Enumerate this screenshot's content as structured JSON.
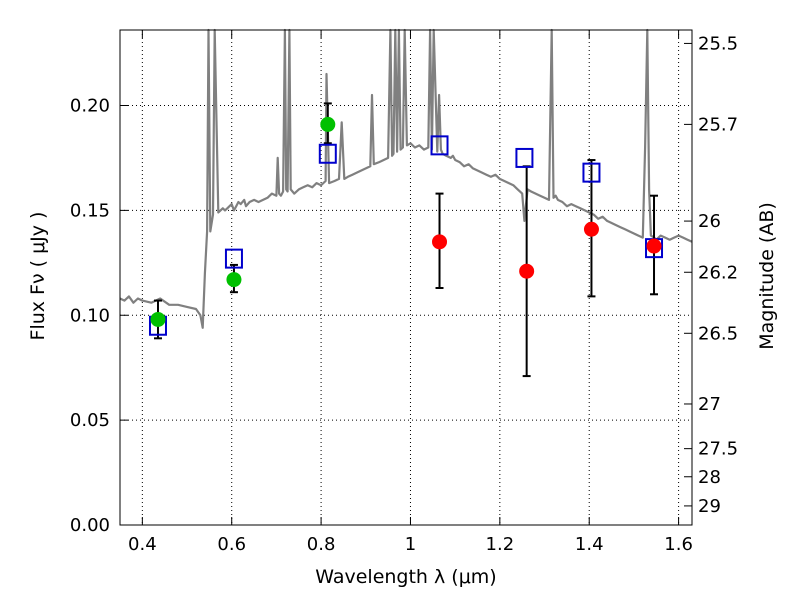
{
  "chart_data": {
    "type": "scatter",
    "xlabel": "Wavelength  λ (μm)",
    "ylabel": "Flux  Fν  ( μJy )",
    "y2label": "Magnitude (AB)",
    "xlim": [
      0.35,
      1.63
    ],
    "ylim": [
      0.0,
      0.236
    ],
    "grid": true,
    "x_ticks": [
      0.4,
      0.6,
      0.8,
      1.0,
      1.2,
      1.4,
      1.6
    ],
    "x_tick_labels": [
      "0.4",
      "0.6",
      "0.8",
      "1",
      "1.2",
      "1.4",
      "1.6"
    ],
    "y_ticks": [
      0.0,
      0.05,
      0.1,
      0.15,
      0.2
    ],
    "y_tick_labels": [
      "0.00",
      "0.05",
      "0.10",
      "0.15",
      "0.20"
    ],
    "y2_ticks": [
      {
        "label": "25.5",
        "flux": 0.2296
      },
      {
        "label": "25.7",
        "flux": 0.191
      },
      {
        "label": "26",
        "flux": 0.1449
      },
      {
        "label": "26.2",
        "flux": 0.1205
      },
      {
        "label": "26.5",
        "flux": 0.0914
      },
      {
        "label": "27",
        "flux": 0.0577
      },
      {
        "label": "27.5",
        "flux": 0.0364
      },
      {
        "label": "28",
        "flux": 0.023
      },
      {
        "label": "29",
        "flux": 0.0091
      }
    ],
    "template_spectrum": {
      "color": "#808080",
      "x": [
        0.35,
        0.36,
        0.37,
        0.38,
        0.39,
        0.4,
        0.42,
        0.44,
        0.46,
        0.48,
        0.5,
        0.52,
        0.53,
        0.535,
        0.54,
        0.545,
        0.548,
        0.552,
        0.558,
        0.562,
        0.57,
        0.575,
        0.58,
        0.585,
        0.59,
        0.595,
        0.6,
        0.605,
        0.61,
        0.615,
        0.62,
        0.628,
        0.632,
        0.64,
        0.65,
        0.66,
        0.67,
        0.68,
        0.69,
        0.7,
        0.703,
        0.706,
        0.71,
        0.715,
        0.719,
        0.722,
        0.725,
        0.729,
        0.732,
        0.74,
        0.75,
        0.76,
        0.77,
        0.78,
        0.79,
        0.8,
        0.81,
        0.812,
        0.818,
        0.83,
        0.84,
        0.846,
        0.852,
        0.86,
        0.87,
        0.88,
        0.89,
        0.9,
        0.91,
        0.914,
        0.918,
        0.93,
        0.94,
        0.95,
        0.955,
        0.959,
        0.962,
        0.966,
        0.97,
        0.974,
        0.978,
        0.983,
        0.987,
        0.992,
        1.0,
        1.01,
        1.02,
        1.03,
        1.04,
        1.044,
        1.048,
        1.052,
        1.06,
        1.064,
        1.068,
        1.072,
        1.08,
        1.09,
        1.095,
        1.1,
        1.11,
        1.12,
        1.13,
        1.14,
        1.15,
        1.16,
        1.17,
        1.18,
        1.19,
        1.2,
        1.21,
        1.22,
        1.23,
        1.24,
        1.25,
        1.255,
        1.258,
        1.262,
        1.27,
        1.28,
        1.29,
        1.3,
        1.31,
        1.316,
        1.32,
        1.325,
        1.33,
        1.34,
        1.35,
        1.36,
        1.37,
        1.38,
        1.39,
        1.4,
        1.41,
        1.42,
        1.43,
        1.44,
        1.45,
        1.46,
        1.47,
        1.48,
        1.49,
        1.5,
        1.51,
        1.52,
        1.525,
        1.53,
        1.534,
        1.538,
        1.545,
        1.55,
        1.56,
        1.57,
        1.58,
        1.59,
        1.6,
        1.61,
        1.62,
        1.63
      ],
      "y": [
        0.108,
        0.107,
        0.109,
        0.106,
        0.108,
        0.107,
        0.106,
        0.108,
        0.105,
        0.105,
        0.104,
        0.103,
        0.1,
        0.094,
        0.12,
        0.14,
        0.236,
        0.14,
        0.148,
        0.236,
        0.149,
        0.15,
        0.151,
        0.15,
        0.151,
        0.152,
        0.153,
        0.15,
        0.152,
        0.154,
        0.153,
        0.155,
        0.152,
        0.154,
        0.155,
        0.154,
        0.155,
        0.156,
        0.158,
        0.157,
        0.175,
        0.158,
        0.157,
        0.159,
        0.236,
        0.16,
        0.159,
        0.236,
        0.16,
        0.158,
        0.16,
        0.161,
        0.162,
        0.161,
        0.163,
        0.162,
        0.164,
        0.215,
        0.163,
        0.164,
        0.165,
        0.192,
        0.165,
        0.166,
        0.167,
        0.168,
        0.169,
        0.17,
        0.171,
        0.205,
        0.172,
        0.173,
        0.174,
        0.175,
        0.236,
        0.176,
        0.177,
        0.236,
        0.178,
        0.236,
        0.179,
        0.18,
        0.236,
        0.181,
        0.182,
        0.18,
        0.181,
        0.179,
        0.18,
        0.236,
        0.179,
        0.236,
        0.178,
        0.205,
        0.179,
        0.177,
        0.176,
        0.175,
        0.176,
        0.174,
        0.173,
        0.171,
        0.172,
        0.17,
        0.169,
        0.168,
        0.167,
        0.166,
        0.167,
        0.165,
        0.164,
        0.163,
        0.162,
        0.16,
        0.158,
        0.145,
        0.152,
        0.16,
        0.159,
        0.158,
        0.157,
        0.156,
        0.155,
        0.236,
        0.156,
        0.157,
        0.155,
        0.154,
        0.152,
        0.153,
        0.152,
        0.151,
        0.15,
        0.149,
        0.148,
        0.146,
        0.147,
        0.145,
        0.144,
        0.143,
        0.142,
        0.141,
        0.14,
        0.139,
        0.138,
        0.137,
        0.18,
        0.236,
        0.16,
        0.138,
        0.137,
        0.136,
        0.138,
        0.137,
        0.136,
        0.137,
        0.138,
        0.137,
        0.136,
        0.135
      ]
    },
    "photometry_points": [
      {
        "x": 0.435,
        "y": 0.098,
        "yerr_low": 0.009,
        "yerr_high": 0.009,
        "color": "#00c000"
      },
      {
        "x": 0.605,
        "y": 0.117,
        "yerr_low": 0.006,
        "yerr_high": 0.007,
        "color": "#00c000"
      },
      {
        "x": 0.815,
        "y": 0.191,
        "yerr_low": 0.009,
        "yerr_high": 0.01,
        "color": "#00c000"
      },
      {
        "x": 1.065,
        "y": 0.135,
        "yerr_low": 0.022,
        "yerr_high": 0.023,
        "color": "#ff0000"
      },
      {
        "x": 1.26,
        "y": 0.121,
        "yerr_low": 0.05,
        "yerr_high": 0.05,
        "color": "#ff0000"
      },
      {
        "x": 1.405,
        "y": 0.141,
        "yerr_low": 0.032,
        "yerr_high": 0.033,
        "color": "#ff0000"
      },
      {
        "x": 1.545,
        "y": 0.133,
        "yerr_low": 0.023,
        "yerr_high": 0.024,
        "color": "#ff0000"
      }
    ],
    "model_points": {
      "color": "#0000cc",
      "marker": "open-square",
      "x": [
        0.435,
        0.605,
        0.815,
        1.065,
        1.255,
        1.405,
        1.545
      ],
      "y": [
        0.095,
        0.127,
        0.177,
        0.181,
        0.175,
        0.168,
        0.132
      ]
    }
  }
}
